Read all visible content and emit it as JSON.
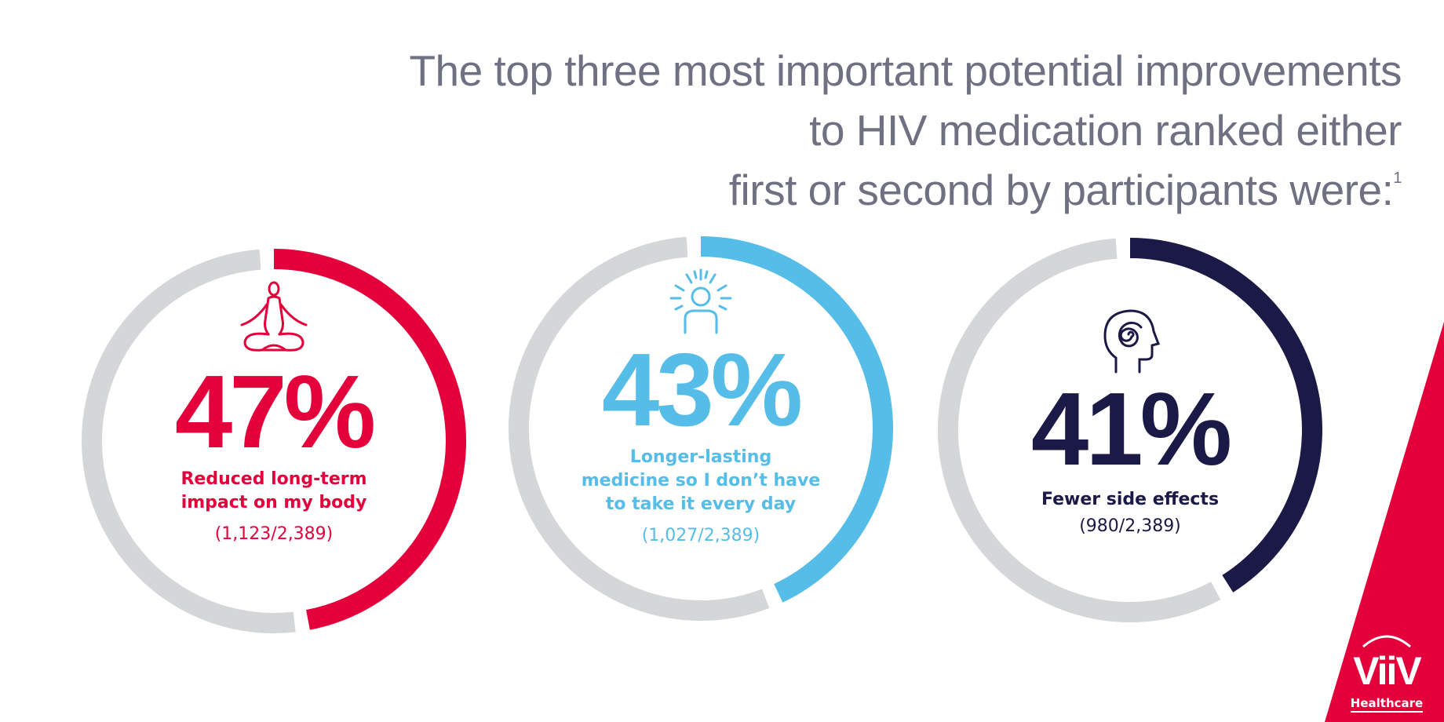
{
  "title": {
    "lines": [
      "The top three most important potential improvements",
      "to HIV medication ranked either",
      "first or second by participants were:"
    ],
    "footnote": "1"
  },
  "chart_data": {
    "type": "donut",
    "title": "The top three most important potential improvements to HIV medication ranked either first or second by participants were:",
    "series": [
      {
        "name": "Reduced long-term impact on my body",
        "value": 47,
        "value_label": "47%",
        "label_lines": [
          "Reduced long-term",
          "impact on my body"
        ],
        "fraction": "(1,123/2,389)",
        "numerator": 1123,
        "denominator": 2389,
        "color": "#e4003b",
        "icon": "meditation-icon"
      },
      {
        "name": "Longer-lasting medicine so I don't have to take it every day",
        "value": 43,
        "value_label": "43%",
        "label_lines": [
          "Longer-lasting",
          "medicine so I don’t have",
          "to take it every day"
        ],
        "fraction": "(1,027/2,389)",
        "numerator": 1027,
        "denominator": 2389,
        "color": "#55bde8",
        "icon": "radiant-person-icon"
      },
      {
        "name": "Fewer side effects",
        "value": 41,
        "value_label": "41%",
        "label_lines": [
          "Fewer side effects"
        ],
        "fraction": "(980/2,389)",
        "numerator": 980,
        "denominator": 2389,
        "color": "#1b1a47",
        "icon": "head-spiral-icon"
      }
    ],
    "track_color": "#d4d6d7"
  },
  "logo": {
    "brand": "ViiV",
    "sub": "Healthcare",
    "color": "#e4003b"
  }
}
